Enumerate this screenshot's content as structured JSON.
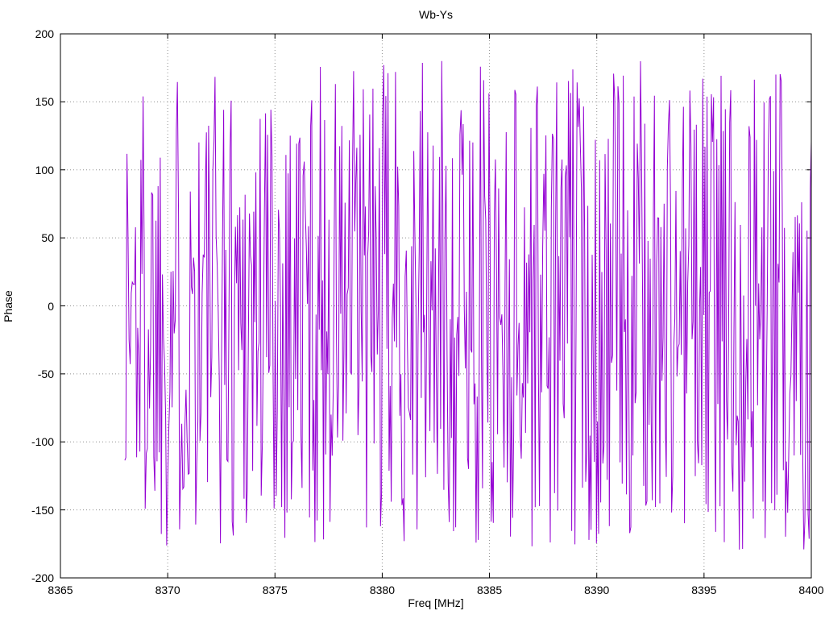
{
  "chart_data": {
    "type": "line",
    "title": "Wb-Ys",
    "xlabel": "Freq [MHz]",
    "ylabel": "Phase",
    "xlim": [
      8365,
      8400
    ],
    "ylim": [
      -200,
      200
    ],
    "xticks": [
      8365,
      8370,
      8375,
      8380,
      8385,
      8390,
      8395,
      8400
    ],
    "yticks": [
      -200,
      -150,
      -100,
      -50,
      0,
      50,
      100,
      150,
      200
    ],
    "grid": true,
    "legend": "none",
    "line_color": "#9400d3",
    "grid_color": "#909090",
    "series_name": "wrapped phase vs frequency",
    "signal": {
      "description": "Noise-like wrapped interferometric phase, uniformly filling -180..180 deg",
      "x_start": 8368.0,
      "x_end": 8400.0,
      "n_points": 640,
      "y_min": -180,
      "y_max": 180,
      "seed": 1337
    }
  }
}
